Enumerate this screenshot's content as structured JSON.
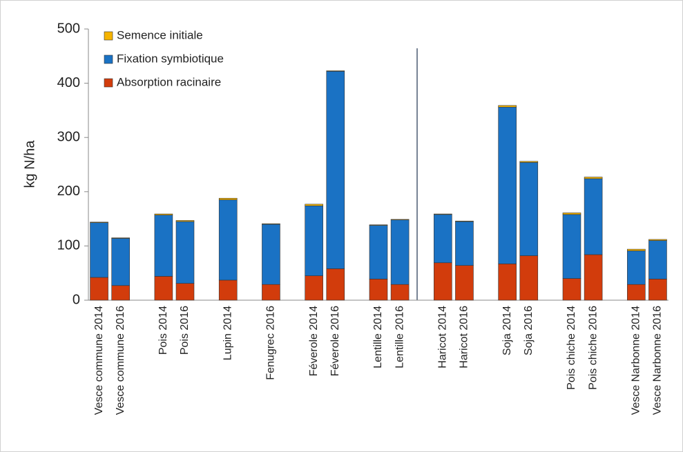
{
  "chart_data": {
    "type": "stacked-bar",
    "y_label": "kg N/ha",
    "categories": [
      "Vesce commune 2014",
      "Vesce commune 2016",
      null,
      "Pois 2014",
      "Pois 2016",
      null,
      "Lupin 2014",
      null,
      "Fenugrec 2016",
      null,
      "Féverole 2014",
      "Féverole 2016",
      null,
      "Lentille 2014",
      "Lentille 2016",
      null,
      "Haricot 2014",
      "Haricot 2016",
      null,
      "Soja 2014",
      "Soja 2016",
      null,
      "Pois chiche 2014",
      "Pois chiche 2016",
      null,
      "Vesce Narbonne 2014",
      "Vesce Narbonne 2016"
    ],
    "series": [
      {
        "name": "Absorption racinaire",
        "color": "#d23c0c",
        "values": [
          42,
          27,
          null,
          44,
          31,
          null,
          37,
          null,
          29,
          null,
          45,
          58,
          null,
          39,
          29,
          null,
          69,
          64,
          null,
          67,
          82,
          null,
          40,
          84,
          null,
          29,
          39
        ]
      },
      {
        "name": "Fixation symbiotique",
        "color": "#1a72c4",
        "values": [
          101,
          87,
          null,
          113,
          114,
          null,
          148,
          null,
          111,
          null,
          129,
          364,
          null,
          99,
          119,
          null,
          89,
          81,
          null,
          289,
          172,
          null,
          118,
          140,
          null,
          62,
          71
        ]
      },
      {
        "name": "Semence initiale",
        "color": "#f6b400",
        "values": [
          1,
          1,
          null,
          2,
          2,
          null,
          3,
          null,
          1,
          null,
          3,
          1,
          null,
          1,
          1,
          null,
          1,
          1,
          null,
          3,
          2,
          null,
          3,
          3,
          null,
          3,
          2
        ]
      }
    ],
    "ylim": [
      0,
      500
    ],
    "yticks": [
      0,
      100,
      200,
      300,
      400,
      500
    ],
    "grid": false
  }
}
